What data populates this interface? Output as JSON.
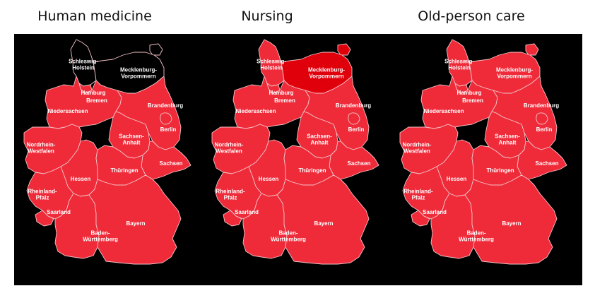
{
  "titles": [
    "Human medicine",
    "Nursing",
    "Old-person care"
  ],
  "colors": {
    "shortage": "#ef2b3a",
    "strong_shortage": "#e0000c",
    "no_shortage": "#000000",
    "background": "#000000",
    "border": "#f3c2c6"
  },
  "states": {
    "sh": "Schleswig-\nHolstein",
    "mv": "Mecklenburg-\nVorpommern",
    "hh": "Hamburg",
    "hb": "Bremen",
    "ni": "Niedersachsen",
    "bb": "Brandenburg",
    "be": "Berlin",
    "st": "Sachsen-\nAnhalt",
    "nw": "Nordrhein-\nWestfalen",
    "sn": "Sachsen",
    "he": "Hessen",
    "th": "Thüringen",
    "rp": "Rheinland-\nPfalz",
    "sl": "Saarland",
    "bw": "Baden-\nWürttemberg",
    "by": "Bayern"
  },
  "maps": [
    {
      "name": "human-medicine",
      "status": {
        "sh": "none",
        "mv": "none"
      }
    },
    {
      "name": "nursing",
      "status": {
        "mv": "strong"
      }
    },
    {
      "name": "old-person-care",
      "status": {}
    }
  ]
}
